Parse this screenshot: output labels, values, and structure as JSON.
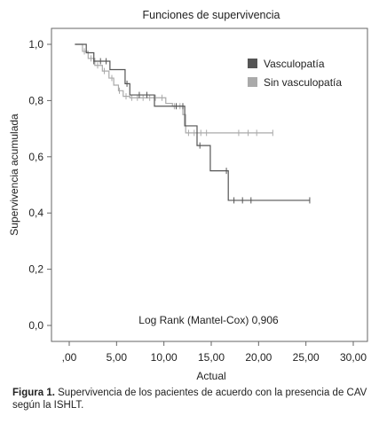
{
  "chart_data": {
    "type": "line",
    "step": true,
    "title": "Funciones de supervivencia",
    "xlabel": "Actual",
    "ylabel": "Supervivencia acumulada",
    "xlim": [
      0,
      30
    ],
    "ylim": [
      0,
      1
    ],
    "xticks": [
      ",00",
      "5,00",
      "10,00",
      "15,00",
      "20,00",
      "25,00",
      "30,00"
    ],
    "xtick_values": [
      0,
      5,
      10,
      15,
      20,
      25,
      30
    ],
    "yticks": [
      "0,0",
      "0,2",
      "0,4",
      "0,6",
      "0,8",
      "1,0"
    ],
    "ytick_values": [
      0,
      0.2,
      0.4,
      0.6,
      0.8,
      1.0
    ],
    "grid": false,
    "legend_position": "top-right",
    "annotation": "Log Rank (Mantel-Cox) 0,906",
    "series": [
      {
        "name": "Vasculopatía",
        "color": "#555555",
        "steps": [
          [
            0.6,
            1.0
          ],
          [
            1.8,
            0.97
          ],
          [
            2.6,
            0.94
          ],
          [
            4.3,
            0.91
          ],
          [
            5.9,
            0.86
          ],
          [
            6.4,
            0.82
          ],
          [
            8.5,
            0.82
          ],
          [
            9.0,
            0.78
          ],
          [
            11.5,
            0.78
          ],
          [
            12.2,
            0.71
          ],
          [
            13.5,
            0.64
          ],
          [
            14.9,
            0.55
          ],
          [
            16.8,
            0.445
          ],
          [
            25.4,
            0.445
          ]
        ],
        "censor_x": [
          2.6,
          3.3,
          3.9,
          6.1,
          7.4,
          8.2,
          11.3,
          12.0,
          13.8,
          16.6,
          17.4,
          18.3,
          19.2,
          25.4
        ]
      },
      {
        "name": "Sin vasculopatía",
        "color": "#aaaaaa",
        "steps": [
          [
            0.6,
            1.0
          ],
          [
            1.4,
            0.975
          ],
          [
            2.0,
            0.95
          ],
          [
            2.7,
            0.925
          ],
          [
            3.5,
            0.905
          ],
          [
            4.2,
            0.88
          ],
          [
            4.7,
            0.855
          ],
          [
            5.2,
            0.835
          ],
          [
            5.7,
            0.815
          ],
          [
            6.4,
            0.81
          ],
          [
            10.2,
            0.79
          ],
          [
            10.9,
            0.78
          ],
          [
            12.0,
            0.75
          ],
          [
            12.3,
            0.685
          ],
          [
            21.5,
            0.685
          ]
        ],
        "censor_x": [
          1.6,
          2.3,
          3.0,
          3.7,
          4.5,
          5.3,
          6.0,
          6.6,
          7.2,
          7.8,
          8.5,
          9.1,
          9.8,
          11.1,
          11.7,
          12.6,
          13.2,
          13.9,
          14.5,
          17.9,
          18.9,
          19.8,
          21.5
        ]
      }
    ]
  },
  "caption": {
    "label": "Figura 1.",
    "text": " Supervivencia de los pacientes de acuerdo con la presencia de CAV según la ISHLT."
  }
}
